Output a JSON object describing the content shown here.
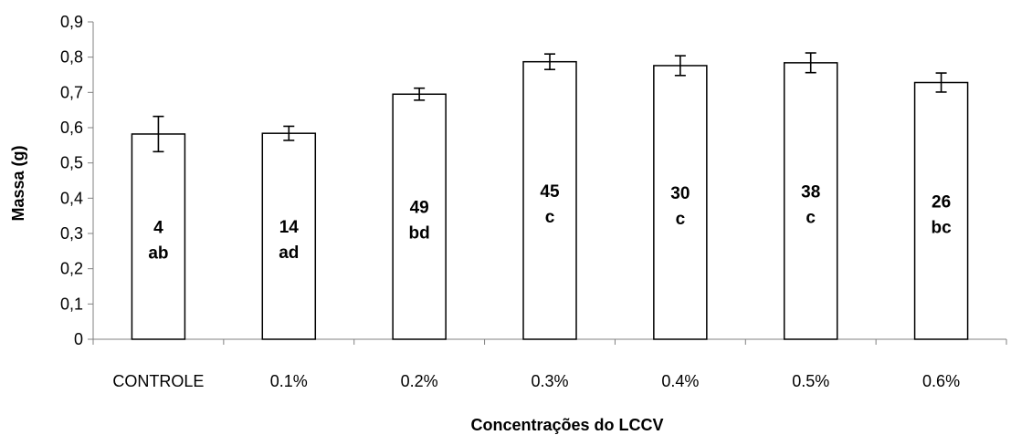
{
  "chart_data": {
    "type": "bar",
    "xlabel": "Concentrações do LCCV",
    "ylabel": "Massa (g)",
    "ylim": [
      0,
      0.9
    ],
    "ytick_step": 0.1,
    "ytick_labels": [
      "0",
      "0,1",
      "0,2",
      "0,3",
      "0,4",
      "0,5",
      "0,6",
      "0,7",
      "0,8",
      "0,9"
    ],
    "categories": [
      "CONTROLE",
      "0.1%",
      "0.2%",
      "0.3%",
      "0.4%",
      "0.5%",
      "0.6%"
    ],
    "values": [
      0.582,
      0.584,
      0.695,
      0.787,
      0.776,
      0.784,
      0.728
    ],
    "errors": [
      0.05,
      0.02,
      0.017,
      0.022,
      0.028,
      0.028,
      0.027
    ],
    "bar_counts": [
      "4",
      "14",
      "49",
      "45",
      "30",
      "38",
      "26"
    ],
    "bar_letters": [
      "ab",
      "ad",
      "bd",
      "c",
      "c",
      "c",
      "bc"
    ],
    "grid": false,
    "legend": "none",
    "colors": {
      "bar_fill": "#ffffff",
      "bar_stroke": "#000000",
      "axis": "#808080"
    }
  }
}
